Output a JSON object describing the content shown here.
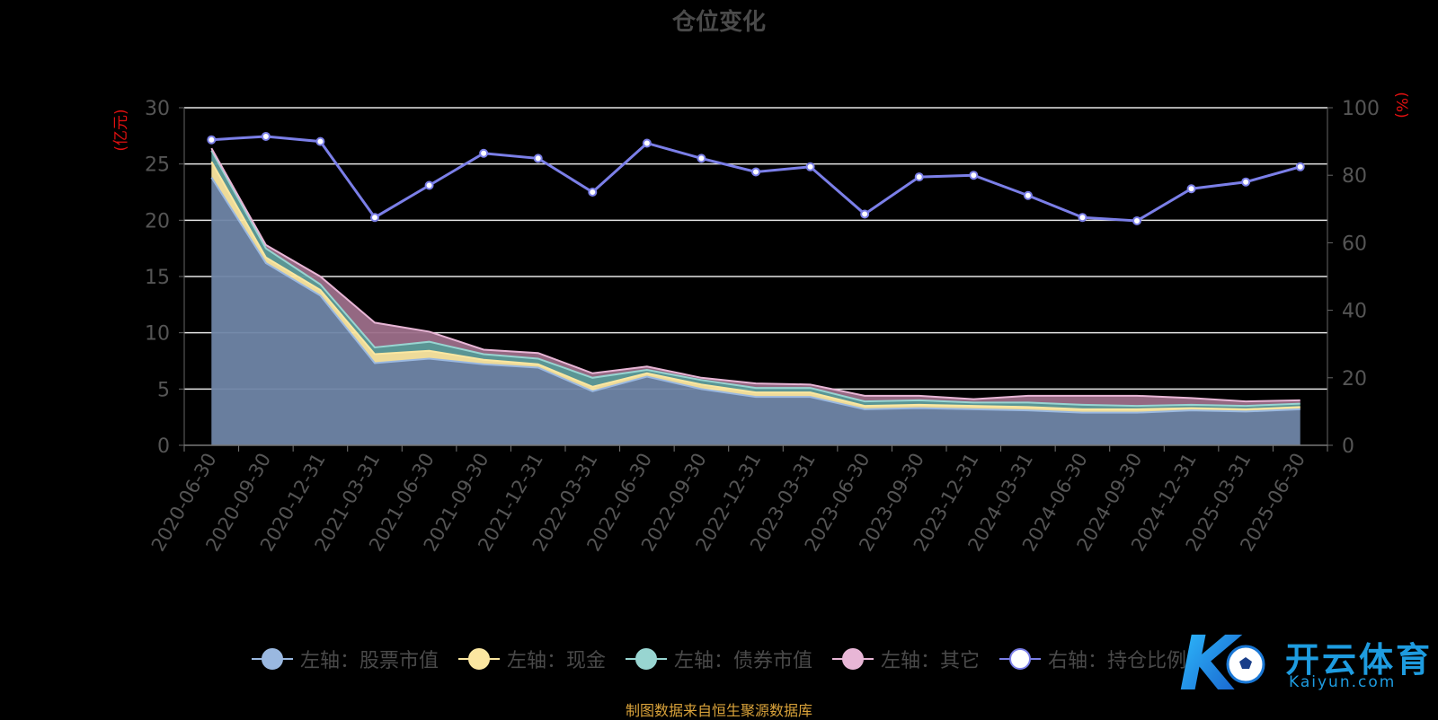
{
  "chart_data": {
    "type": "area",
    "title": "仓位变化",
    "ylabel_left": "(亿元)",
    "ylabel_right": "(%)",
    "ylim_left": [
      0,
      30
    ],
    "ylim_right": [
      0,
      100
    ],
    "yticks_left": [
      "0",
      "5",
      "10",
      "15",
      "20",
      "25",
      "30"
    ],
    "yticks_right": [
      "0",
      "20",
      "40",
      "60",
      "80",
      "100"
    ],
    "grid": true,
    "legend_position": "bottom",
    "categories": [
      "2020-06-30",
      "2020-09-30",
      "2020-12-31",
      "2021-03-31",
      "2021-06-30",
      "2021-09-30",
      "2021-12-31",
      "2022-03-31",
      "2022-06-30",
      "2022-09-30",
      "2022-12-31",
      "2023-03-31",
      "2023-06-30",
      "2023-09-30",
      "2023-12-31",
      "2024-03-31",
      "2024-06-30",
      "2024-09-30",
      "2024-12-31",
      "2025-03-31",
      "2025-06-30"
    ],
    "stack_series": [
      {
        "name": "左轴：股票市值",
        "color": "#9ab8e0",
        "fill": "#6f85a6",
        "values": [
          23.8,
          16.2,
          13.3,
          7.3,
          7.7,
          7.2,
          6.9,
          4.8,
          6.1,
          5.0,
          4.3,
          4.3,
          3.2,
          3.3,
          3.2,
          3.1,
          2.9,
          2.9,
          3.1,
          3.0,
          3.2
        ]
      },
      {
        "name": "左轴：现金",
        "color": "#fbe7a1",
        "fill": "#fbe7a1",
        "values": [
          1.4,
          0.5,
          0.5,
          0.8,
          0.7,
          0.4,
          0.3,
          0.4,
          0.3,
          0.4,
          0.4,
          0.4,
          0.3,
          0.3,
          0.3,
          0.3,
          0.3,
          0.3,
          0.2,
          0.2,
          0.2
        ]
      },
      {
        "name": "左轴：债券市值",
        "color": "#98d5d1",
        "fill": "#5f9d9c",
        "values": [
          1.0,
          0.8,
          0.5,
          0.6,
          0.8,
          0.5,
          0.5,
          0.8,
          0.3,
          0.4,
          0.4,
          0.4,
          0.4,
          0.4,
          0.3,
          0.4,
          0.4,
          0.3,
          0.3,
          0.3,
          0.3
        ]
      },
      {
        "name": "左轴：其它",
        "color": "#e8b6d6",
        "fill": "#9c6e89",
        "values": [
          0.2,
          0.3,
          0.7,
          2.2,
          0.9,
          0.4,
          0.5,
          0.4,
          0.3,
          0.2,
          0.4,
          0.3,
          0.5,
          0.4,
          0.3,
          0.6,
          0.8,
          0.9,
          0.6,
          0.4,
          0.3
        ]
      }
    ],
    "line_series": {
      "name": "右轴：持仓比例",
      "color": "#7b7fe8",
      "values": [
        90.5,
        91.5,
        90.0,
        67.5,
        77.0,
        86.5,
        85.0,
        75.0,
        89.5,
        85.0,
        81.0,
        82.5,
        68.5,
        79.5,
        80.0,
        74.0,
        67.5,
        66.5,
        76.0,
        78.0,
        82.5
      ]
    }
  },
  "footer": "制图数据来自恒生聚源数据库",
  "watermark": {
    "cn": "开云体育",
    "en": "Kaiyun.com",
    "letter": "K"
  }
}
